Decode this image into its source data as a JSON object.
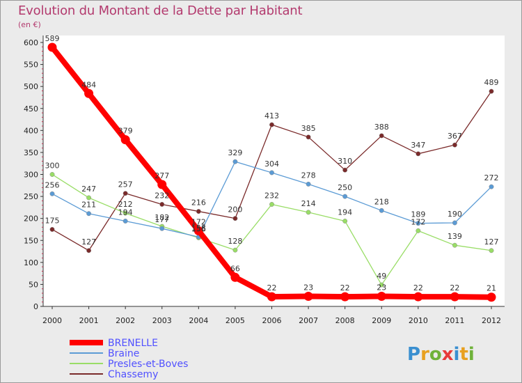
{
  "title": "Evolution du Montant de la Dette par Habitant",
  "unit": "(en €)",
  "logo": {
    "letters": [
      "P",
      "r",
      "o",
      "x",
      "i",
      "t",
      "i"
    ],
    "colors": [
      "#3a8fd0",
      "#e8a020",
      "#6fb23a",
      "#e83a3a",
      "#3a8fd0",
      "#e8a020",
      "#6fb23a"
    ]
  },
  "chart_data": {
    "type": "line",
    "x": [
      "2000",
      "2001",
      "2002",
      "2003",
      "2004",
      "2005",
      "2006",
      "2007",
      "2008",
      "2009",
      "2010",
      "2011",
      "2012"
    ],
    "ylim": [
      0,
      600
    ],
    "yticks": [
      "0",
      "50",
      "100",
      "150",
      "200",
      "250",
      "300",
      "350",
      "400",
      "450",
      "500",
      "550",
      "600"
    ],
    "grid": false,
    "legend_position": "bottom-left",
    "series": [
      {
        "name": "BRENELLE",
        "color": "#ff0000",
        "values": [
          589,
          484,
          379,
          277,
          172,
          66,
          22,
          23,
          22,
          23,
          22,
          22,
          21
        ],
        "labels": [
          "589",
          "484",
          "379",
          "277",
          "172",
          "66",
          "22",
          "23",
          "22",
          "23",
          "22",
          "22",
          "21"
        ]
      },
      {
        "name": "Braine",
        "color": "#5b9bd5",
        "values": [
          256,
          211,
          194,
          177,
          158,
          329,
          304,
          278,
          250,
          218,
          189,
          190,
          272
        ],
        "labels": [
          "256",
          "211",
          "194",
          "177",
          "158",
          "329",
          "304",
          "278",
          "250",
          "218",
          "189",
          "190",
          "272"
        ]
      },
      {
        "name": "Presles-et-Boves",
        "color": "#99dd66",
        "values": [
          300,
          247,
          212,
          182,
          156,
          128,
          232,
          214,
          194,
          49,
          172,
          139,
          127
        ],
        "labels": [
          "300",
          "247",
          "212",
          "182",
          "156",
          "128",
          "232",
          "214",
          "194",
          "49",
          "172",
          "139",
          "127"
        ]
      },
      {
        "name": "Chassemy",
        "color": "#7a2a2a",
        "values": [
          175,
          127,
          257,
          232,
          216,
          200,
          413,
          385,
          310,
          388,
          347,
          367,
          489
        ],
        "labels": [
          "175",
          "127",
          "257",
          "232",
          "216",
          "200",
          "413",
          "385",
          "310",
          "388",
          "347",
          "367",
          "489"
        ]
      }
    ]
  }
}
